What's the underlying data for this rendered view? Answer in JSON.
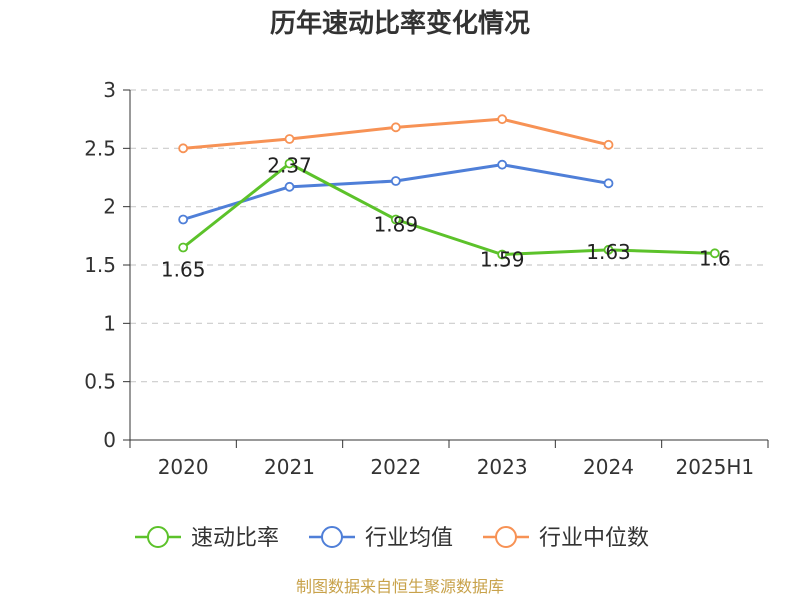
{
  "title": "历年速动比率变化情况",
  "source": "制图数据来自恒生聚源数据库",
  "chart_data": {
    "type": "line",
    "title": "历年速动比率变化情况",
    "categories": [
      "2020",
      "2021",
      "2022",
      "2023",
      "2024",
      "2025H1"
    ],
    "ylim": [
      0,
      3
    ],
    "yticks": [
      "0",
      "0.5",
      "1",
      "1.5",
      "2",
      "2.5",
      "3"
    ],
    "grid": true,
    "legend_position": "bottom",
    "series": [
      {
        "name": "速动比率",
        "color": "#5cc22a",
        "values": [
          1.65,
          2.37,
          1.89,
          1.59,
          1.63,
          1.6
        ],
        "labels": [
          "1.65",
          "2.37",
          "1.89",
          "1.59",
          "1.63",
          "1.6"
        ]
      },
      {
        "name": "行业均值",
        "color": "#4f7fd8",
        "values": [
          1.89,
          2.17,
          2.22,
          2.36,
          2.2,
          null
        ]
      },
      {
        "name": "行业中位数",
        "color": "#f79255",
        "values": [
          2.5,
          2.58,
          2.68,
          2.75,
          2.53,
          null
        ]
      }
    ]
  }
}
